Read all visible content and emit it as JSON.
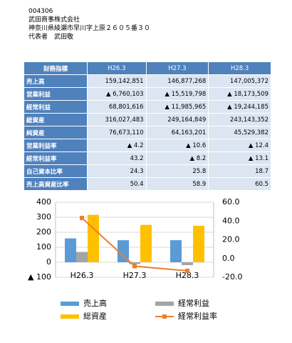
{
  "header": {
    "code": "004306",
    "company": "武田商事株式会社",
    "address": "神奈川県綾瀬市早川字上原２６０５番３０",
    "representative": "代表者　武田敬"
  },
  "table": {
    "header": [
      "財務指標",
      "H26.3",
      "H27.3",
      "H28.3"
    ],
    "rows": [
      [
        "売上高",
        "159,142,851",
        "146,877,268",
        "147,005,372"
      ],
      [
        "営業利益",
        "▲ 6,760,103",
        "▲ 15,519,798",
        "▲ 18,173,509"
      ],
      [
        "経常利益",
        "68,801,616",
        "▲ 11,985,965",
        "▲ 19,244,185"
      ],
      [
        "総資産",
        "316,027,483",
        "249,164,849",
        "243,143,352"
      ],
      [
        "純資産",
        "76,673,110",
        "64,163,201",
        "45,529,382"
      ],
      [
        "営業利益率",
        "▲ 4.2",
        "▲ 10.6",
        "▲ 12.4"
      ],
      [
        "経常利益率",
        "43.2",
        "▲ 8.2",
        "▲ 13.1"
      ],
      [
        "自己資本比率",
        "24.3",
        "25.8",
        "18.7"
      ],
      [
        "売上高資産比率",
        "50.4",
        "58.9",
        "60.5"
      ]
    ]
  },
  "chart_data": {
    "type": "combo",
    "categories": [
      "H26.3",
      "H27.3",
      "H28.3"
    ],
    "series": [
      {
        "name": "売上高",
        "color": "#5b9bd5",
        "type": "bar",
        "values": [
          159.1,
          146.9,
          147.0
        ]
      },
      {
        "name": "経常利益",
        "color": "#a5a5a5",
        "type": "bar",
        "values": [
          68.8,
          -12.0,
          -19.2
        ]
      },
      {
        "name": "総資産",
        "color": "#ffc000",
        "type": "bar",
        "values": [
          316.0,
          249.2,
          243.1
        ]
      },
      {
        "name": "経常利益率",
        "color": "#ed7d31",
        "type": "line",
        "axis": "y2",
        "values": [
          43.2,
          -8.2,
          -13.1
        ]
      }
    ],
    "ylim": [
      -100,
      400
    ],
    "yticks": [
      {
        "value": -100,
        "label": "▲ 100"
      },
      0,
      100,
      200,
      300,
      400
    ],
    "y2lim": [
      -20,
      60
    ],
    "y2ticks": [
      {
        "value": -20,
        "label": "-20.0"
      },
      {
        "value": 0,
        "label": "0.0"
      },
      {
        "value": 20,
        "label": "20.0"
      },
      {
        "value": 40,
        "label": "40.0"
      },
      {
        "value": 60,
        "label": "60.0"
      }
    ],
    "grid": true
  }
}
